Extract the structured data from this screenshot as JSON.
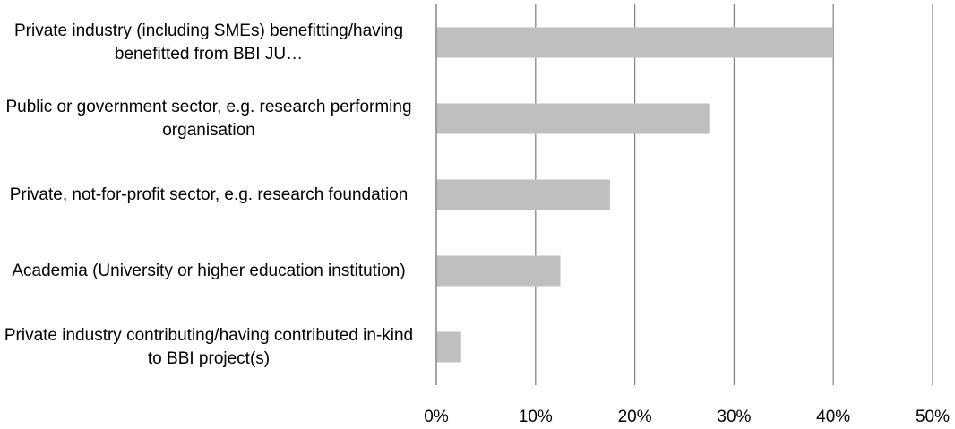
{
  "chart_data": {
    "type": "bar",
    "orientation": "horizontal",
    "categories": [
      "Private industry (including SMEs) benefitting/having benefitted from BBI JU…",
      "Public or government sector, e.g. research performing organisation",
      "Private, not-for-profit sector, e.g. research foundation",
      "Academia (University or higher education institution)",
      "Private industry contributing/having contributed in-kind to BBI project(s)"
    ],
    "values": [
      40,
      27.5,
      17.5,
      12.5,
      2.5
    ],
    "color": "#bfbfbf",
    "xlim": [
      0,
      50
    ],
    "xticks": [
      {
        "value": 0,
        "label": "0%"
      },
      {
        "value": 10,
        "label": "10%"
      },
      {
        "value": 20,
        "label": "20%"
      },
      {
        "value": 30,
        "label": "30%"
      },
      {
        "value": 40,
        "label": "40%"
      },
      {
        "value": 50,
        "label": "50%"
      }
    ],
    "grid": true
  }
}
